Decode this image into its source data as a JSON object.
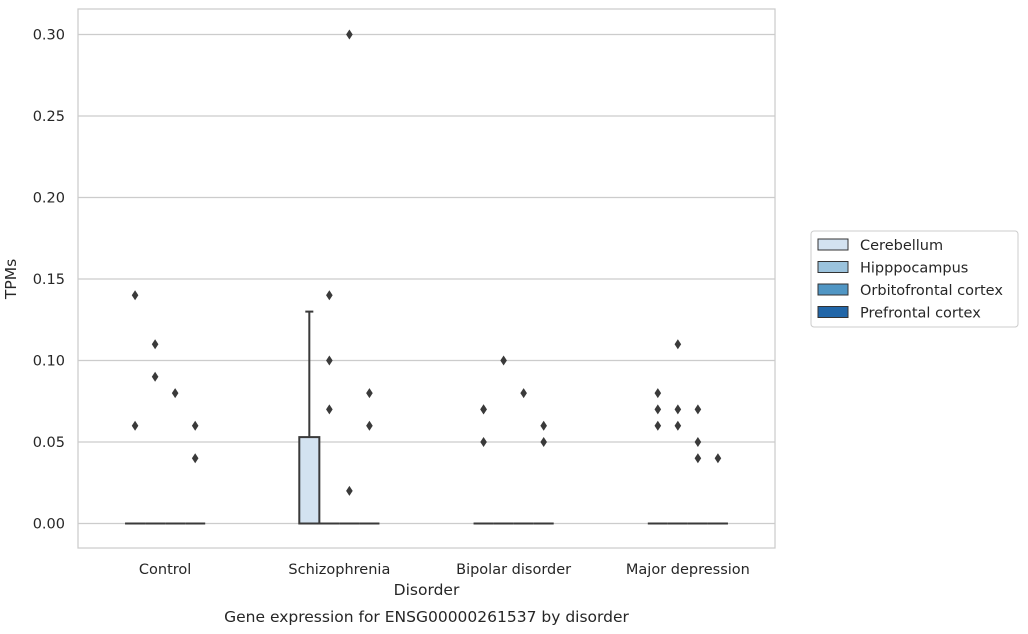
{
  "chart_data": {
    "type": "box",
    "caption": "Gene expression for ENSG00000261537 by disorder",
    "xlabel": "Disorder",
    "ylabel": "TPMs",
    "ylim": [
      -0.015,
      0.315
    ],
    "yticks": [
      0.0,
      0.05,
      0.1,
      0.15,
      0.2,
      0.25,
      0.3
    ],
    "ytick_labels": [
      "0.00",
      "0.05",
      "0.10",
      "0.15",
      "0.20",
      "0.25",
      "0.30"
    ],
    "grid": "horizontal",
    "legend_position": "right",
    "categories": [
      "Control",
      "Schizophrenia",
      "Bipolar disorder",
      "Major depression"
    ],
    "series": [
      {
        "name": "Cerebellum",
        "color": "#d3e2f0",
        "boxes": [
          {
            "q1": 0.0,
            "median": 0.0,
            "q3": 0.0,
            "whislo": 0.0,
            "whishi": 0.0,
            "fliers": [
              0.06,
              0.14
            ]
          },
          {
            "q1": 0.0,
            "median": 0.0,
            "q3": 0.053,
            "whislo": 0.0,
            "whishi": 0.13,
            "fliers": []
          },
          {
            "q1": 0.0,
            "median": 0.0,
            "q3": 0.0,
            "whislo": 0.0,
            "whishi": 0.0,
            "fliers": [
              0.05,
              0.07,
              0.07
            ]
          },
          {
            "q1": 0.0,
            "median": 0.0,
            "q3": 0.0,
            "whislo": 0.0,
            "whishi": 0.0,
            "fliers": [
              0.06,
              0.07,
              0.08
            ]
          }
        ]
      },
      {
        "name": "Hipppocampus",
        "color": "#9bc3dd",
        "boxes": [
          {
            "q1": 0.0,
            "median": 0.0,
            "q3": 0.0,
            "whislo": 0.0,
            "whishi": 0.0,
            "fliers": [
              0.09,
              0.11
            ]
          },
          {
            "q1": 0.0,
            "median": 0.0,
            "q3": 0.0,
            "whislo": 0.0,
            "whishi": 0.0,
            "fliers": [
              0.07,
              0.1,
              0.14
            ]
          },
          {
            "q1": 0.0,
            "median": 0.0,
            "q3": 0.0,
            "whislo": 0.0,
            "whishi": 0.0,
            "fliers": [
              0.1
            ]
          },
          {
            "q1": 0.0,
            "median": 0.0,
            "q3": 0.0,
            "whislo": 0.0,
            "whishi": 0.0,
            "fliers": [
              0.06,
              0.07,
              0.11
            ]
          }
        ]
      },
      {
        "name": "Orbitofrontal cortex",
        "color": "#5096c4",
        "boxes": [
          {
            "q1": 0.0,
            "median": 0.0,
            "q3": 0.0,
            "whislo": 0.0,
            "whishi": 0.0,
            "fliers": [
              0.08
            ]
          },
          {
            "q1": 0.0,
            "median": 0.0,
            "q3": 0.0,
            "whislo": 0.0,
            "whishi": 0.0,
            "fliers": [
              0.02,
              0.3
            ]
          },
          {
            "q1": 0.0,
            "median": 0.0,
            "q3": 0.0,
            "whislo": 0.0,
            "whishi": 0.0,
            "fliers": [
              0.08
            ]
          },
          {
            "q1": 0.0,
            "median": 0.0,
            "q3": 0.0,
            "whislo": 0.0,
            "whishi": 0.0,
            "fliers": [
              0.04,
              0.05,
              0.07
            ]
          }
        ]
      },
      {
        "name": "Prefrontal cortex",
        "color": "#2166a8",
        "boxes": [
          {
            "q1": 0.0,
            "median": 0.0,
            "q3": 0.0,
            "whislo": 0.0,
            "whishi": 0.0,
            "fliers": [
              0.04,
              0.06
            ]
          },
          {
            "q1": 0.0,
            "median": 0.0,
            "q3": 0.0,
            "whislo": 0.0,
            "whishi": 0.0,
            "fliers": [
              0.06,
              0.08
            ]
          },
          {
            "q1": 0.0,
            "median": 0.0,
            "q3": 0.0,
            "whislo": 0.0,
            "whishi": 0.0,
            "fliers": [
              0.05,
              0.06
            ]
          },
          {
            "q1": 0.0,
            "median": 0.0,
            "q3": 0.0,
            "whislo": 0.0,
            "whishi": 0.0,
            "fliers": [
              0.04
            ]
          }
        ]
      }
    ]
  }
}
